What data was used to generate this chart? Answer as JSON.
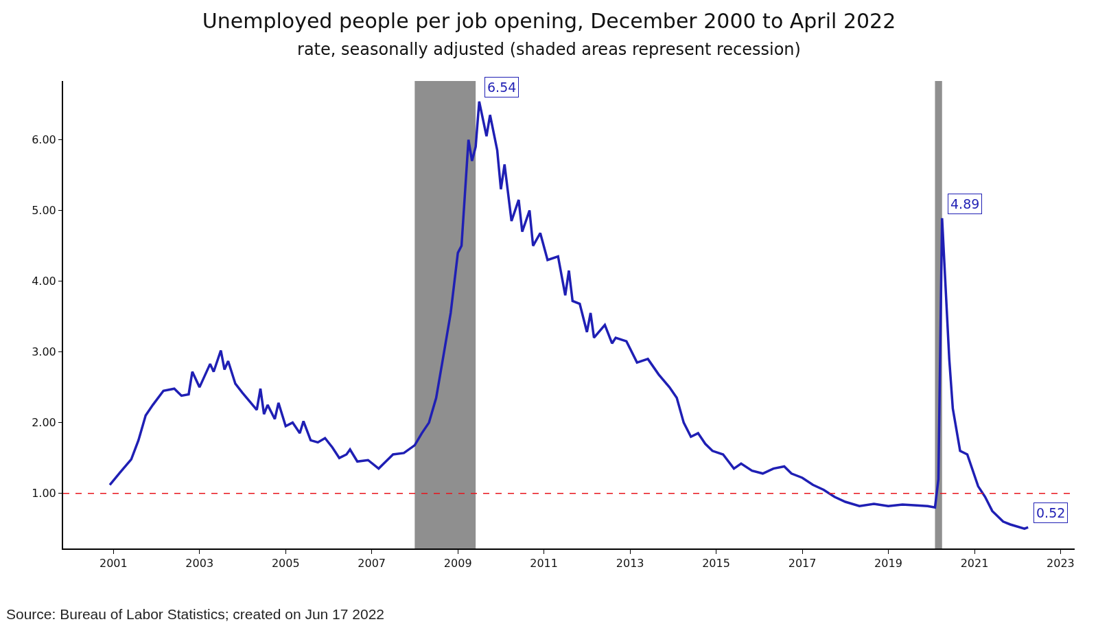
{
  "chart_data": {
    "type": "line",
    "title": "Unemployed people per job opening, December 2000 to April 2022",
    "subtitle": "rate, seasonally adjusted (shaded areas represent recession)",
    "x": [
      "2000-12",
      "2001-03",
      "2001-06",
      "2001-08",
      "2001-10",
      "2001-12",
      "2002-03",
      "2002-06",
      "2002-08",
      "2002-10",
      "2002-11",
      "2003-01",
      "2003-04",
      "2003-05",
      "2003-07",
      "2003-08",
      "2003-09",
      "2003-11",
      "2004-01",
      "2004-03",
      "2004-05",
      "2004-06",
      "2004-07",
      "2004-08",
      "2004-10",
      "2004-11",
      "2005-01",
      "2005-03",
      "2005-05",
      "2005-06",
      "2005-08",
      "2005-10",
      "2005-12",
      "2006-02",
      "2006-04",
      "2006-06",
      "2006-07",
      "2006-09",
      "2006-12",
      "2007-03",
      "2007-05",
      "2007-07",
      "2007-10",
      "2008-01",
      "2008-03",
      "2008-05",
      "2008-07",
      "2008-09",
      "2008-11",
      "2009-01",
      "2009-02",
      "2009-04",
      "2009-05",
      "2009-06",
      "2009-07",
      "2009-09",
      "2009-10",
      "2009-12",
      "2010-01",
      "2010-02",
      "2010-04",
      "2010-06",
      "2010-07",
      "2010-09",
      "2010-10",
      "2010-12",
      "2011-02",
      "2011-05",
      "2011-07",
      "2011-08",
      "2011-09",
      "2011-11",
      "2012-01",
      "2012-02",
      "2012-03",
      "2012-06",
      "2012-08",
      "2012-09",
      "2012-12",
      "2013-03",
      "2013-06",
      "2013-09",
      "2013-12",
      "2014-02",
      "2014-04",
      "2014-06",
      "2014-08",
      "2014-10",
      "2014-12",
      "2015-03",
      "2015-06",
      "2015-08",
      "2015-11",
      "2016-02",
      "2016-05",
      "2016-08",
      "2016-10",
      "2017-01",
      "2017-04",
      "2017-07",
      "2017-10",
      "2018-01",
      "2018-05",
      "2018-09",
      "2019-01",
      "2019-05",
      "2019-09",
      "2019-12",
      "2020-02",
      "2020-03",
      "2020-04",
      "2020-06",
      "2020-07",
      "2020-09",
      "2020-11",
      "2021-02",
      "2021-04",
      "2021-06",
      "2021-09",
      "2021-11",
      "2022-03",
      "2022-04"
    ],
    "series": [
      {
        "color": "#1f1fb4",
        "values": [
          1.12,
          1.3,
          1.48,
          1.75,
          2.1,
          2.25,
          2.45,
          2.48,
          2.38,
          2.4,
          2.72,
          2.5,
          2.83,
          2.72,
          3.02,
          2.75,
          2.87,
          2.55,
          2.42,
          2.3,
          2.18,
          2.48,
          2.12,
          2.25,
          2.05,
          2.28,
          1.95,
          2.0,
          1.85,
          2.02,
          1.75,
          1.72,
          1.78,
          1.65,
          1.5,
          1.55,
          1.62,
          1.45,
          1.47,
          1.35,
          1.45,
          1.55,
          1.57,
          1.68,
          1.85,
          2.0,
          2.35,
          2.95,
          3.55,
          4.4,
          4.5,
          6.0,
          5.7,
          5.9,
          6.54,
          6.05,
          6.35,
          5.85,
          5.3,
          5.65,
          4.85,
          5.15,
          4.7,
          5.0,
          4.5,
          4.68,
          4.3,
          4.35,
          3.8,
          4.15,
          3.72,
          3.68,
          3.28,
          3.55,
          3.2,
          3.38,
          3.12,
          3.2,
          3.15,
          2.85,
          2.9,
          2.68,
          2.5,
          2.35,
          2.0,
          1.8,
          1.85,
          1.7,
          1.6,
          1.55,
          1.35,
          1.42,
          1.32,
          1.28,
          1.35,
          1.38,
          1.28,
          1.22,
          1.12,
          1.05,
          0.95,
          0.88,
          0.82,
          0.85,
          0.82,
          0.84,
          0.83,
          0.82,
          0.8,
          1.2,
          4.89,
          2.9,
          2.2,
          1.6,
          1.55,
          1.1,
          0.95,
          0.75,
          0.6,
          0.56,
          0.5,
          0.52
        ]
      }
    ],
    "xlim": [
      "1999-11",
      "2023-05"
    ],
    "xticks": [
      "2001",
      "2003",
      "2005",
      "2007",
      "2009",
      "2011",
      "2013",
      "2015",
      "2017",
      "2019",
      "2021",
      "2023"
    ],
    "ylim": [
      0.22,
      6.83
    ],
    "yticks": [
      {
        "value": 1,
        "label": "1.00"
      },
      {
        "value": 2,
        "label": "2.00"
      },
      {
        "value": 3,
        "label": "3.00"
      },
      {
        "value": 4,
        "label": "4.00"
      },
      {
        "value": 5,
        "label": "5.00"
      },
      {
        "value": 6,
        "label": "6.00"
      }
    ],
    "ref_lines": [
      {
        "axis": "y",
        "value": 1,
        "color": "#e8141c",
        "line_style": "dashed"
      }
    ],
    "bands": [
      {
        "axis": "x",
        "from": "2008-01",
        "to": "2009-06",
        "color": "#8f8f8f"
      },
      {
        "axis": "x",
        "from": "2020-02",
        "to": "2020-04",
        "color": "#8f8f8f"
      }
    ],
    "annotations": [
      {
        "text": "6.54",
        "x": "2009-07",
        "y": 6.54
      },
      {
        "text": "4.89",
        "x": "2020-04",
        "y": 4.89
      },
      {
        "text": "0.52",
        "x": "2022-04",
        "y": 0.52
      },
      "Source: Bureau of Labor Statistics; created on Jun 17 2022"
    ],
    "grid": false,
    "marker": "none",
    "line_style": "solid"
  }
}
